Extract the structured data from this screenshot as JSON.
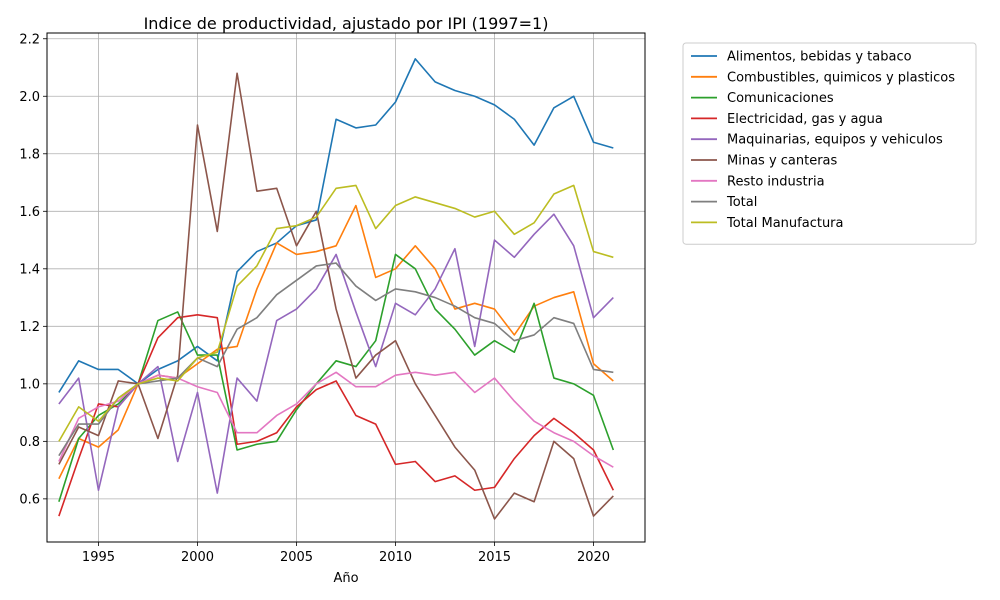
{
  "chart_data": {
    "type": "line",
    "title": "Indice de productividad, ajustado por IPI (1997=1)",
    "xlabel": "Año",
    "ylabel": "",
    "xlim": [
      1992.4,
      2022.6
    ],
    "ylim": [
      0.45,
      2.22
    ],
    "xticks": [
      1995,
      2000,
      2005,
      2010,
      2015,
      2020
    ],
    "yticks": [
      0.6,
      0.8,
      1.0,
      1.2,
      1.4,
      1.6,
      1.8,
      2.0,
      2.2
    ],
    "grid": true,
    "legend_position": "outside-right-top",
    "x": [
      1993,
      1994,
      1995,
      1996,
      1997,
      1998,
      1999,
      2000,
      2001,
      2002,
      2003,
      2004,
      2005,
      2006,
      2007,
      2008,
      2009,
      2010,
      2011,
      2012,
      2013,
      2014,
      2015,
      2016,
      2017,
      2018,
      2019,
      2020,
      2021
    ],
    "series": [
      {
        "name": "Alimentos, bebidas y tabaco",
        "color": "#1f77b4",
        "values": [
          0.97,
          1.08,
          1.05,
          1.05,
          1.0,
          1.05,
          1.08,
          1.13,
          1.08,
          1.39,
          1.46,
          1.49,
          1.55,
          1.57,
          1.92,
          1.89,
          1.9,
          1.98,
          2.13,
          2.05,
          2.02,
          2.0,
          1.97,
          1.92,
          1.83,
          1.96,
          2.0,
          1.84,
          1.82
        ]
      },
      {
        "name": "Combustibles, quimicos y plasticos",
        "color": "#ff7f0e",
        "values": [
          0.67,
          0.81,
          0.78,
          0.84,
          1.0,
          1.03,
          1.02,
          1.07,
          1.12,
          1.13,
          1.33,
          1.49,
          1.45,
          1.46,
          1.48,
          1.62,
          1.37,
          1.4,
          1.48,
          1.4,
          1.26,
          1.28,
          1.26,
          1.17,
          1.27,
          1.3,
          1.32,
          1.07,
          1.01
        ]
      },
      {
        "name": "Comunicaciones",
        "color": "#2ca02c",
        "values": [
          0.59,
          0.81,
          0.89,
          0.93,
          1.0,
          1.22,
          1.25,
          1.1,
          1.1,
          0.77,
          0.79,
          0.8,
          0.91,
          1.0,
          1.08,
          1.06,
          1.15,
          1.45,
          1.4,
          1.26,
          1.19,
          1.1,
          1.15,
          1.11,
          1.28,
          1.02,
          1.0,
          0.96,
          0.77
        ]
      },
      {
        "name": "Electricidad, gas y agua",
        "color": "#d62728",
        "values": [
          0.54,
          0.74,
          0.93,
          0.92,
          1.0,
          1.16,
          1.23,
          1.24,
          1.23,
          0.79,
          0.8,
          0.83,
          0.92,
          0.98,
          1.01,
          0.89,
          0.86,
          0.72,
          0.73,
          0.66,
          0.68,
          0.63,
          0.64,
          0.74,
          0.82,
          0.88,
          0.83,
          0.77,
          0.63
        ]
      },
      {
        "name": "Maquinarias, equipos y vehiculos",
        "color": "#9467bd",
        "values": [
          0.93,
          1.02,
          0.63,
          0.92,
          1.0,
          1.06,
          0.73,
          0.97,
          0.62,
          1.02,
          0.94,
          1.22,
          1.26,
          1.33,
          1.45,
          1.25,
          1.06,
          1.28,
          1.24,
          1.33,
          1.47,
          1.13,
          1.5,
          1.44,
          1.52,
          1.59,
          1.48,
          1.23,
          1.3
        ]
      },
      {
        "name": "Minas y canteras",
        "color": "#8c564b",
        "values": [
          0.72,
          0.85,
          0.82,
          1.01,
          1.0,
          0.81,
          1.03,
          1.9,
          1.53,
          2.08,
          1.67,
          1.68,
          1.48,
          1.6,
          1.26,
          1.02,
          1.1,
          1.15,
          1.0,
          0.89,
          0.78,
          0.7,
          0.53,
          0.62,
          0.59,
          0.8,
          0.74,
          0.54,
          0.61
        ]
      },
      {
        "name": "Resto industria",
        "color": "#e377c2",
        "values": [
          0.73,
          0.88,
          0.92,
          0.94,
          1.0,
          1.03,
          1.02,
          0.99,
          0.97,
          0.83,
          0.83,
          0.89,
          0.93,
          1.0,
          1.04,
          0.99,
          0.99,
          1.03,
          1.04,
          1.03,
          1.04,
          0.97,
          1.02,
          0.94,
          0.87,
          0.83,
          0.8,
          0.75,
          0.71
        ]
      },
      {
        "name": "Total",
        "color": "#7f7f7f",
        "values": [
          0.75,
          0.86,
          0.86,
          0.95,
          1.0,
          1.01,
          1.02,
          1.09,
          1.06,
          1.19,
          1.23,
          1.31,
          1.36,
          1.41,
          1.42,
          1.34,
          1.29,
          1.33,
          1.32,
          1.3,
          1.27,
          1.23,
          1.21,
          1.15,
          1.17,
          1.23,
          1.21,
          1.05,
          1.04
        ]
      },
      {
        "name": "Total Manufactura",
        "color": "#bcbd22",
        "values": [
          0.8,
          0.92,
          0.87,
          0.95,
          1.0,
          1.02,
          1.01,
          1.09,
          1.11,
          1.34,
          1.41,
          1.54,
          1.55,
          1.58,
          1.68,
          1.69,
          1.54,
          1.62,
          1.65,
          1.63,
          1.61,
          1.58,
          1.6,
          1.52,
          1.56,
          1.66,
          1.69,
          1.46,
          1.44
        ]
      }
    ]
  }
}
